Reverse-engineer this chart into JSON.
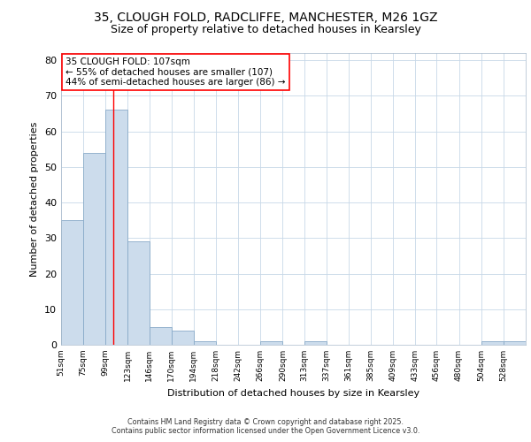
{
  "title1": "35, CLOUGH FOLD, RADCLIFFE, MANCHESTER, M26 1GZ",
  "title2": "Size of property relative to detached houses in Kearsley",
  "xlabel": "Distribution of detached houses by size in Kearsley",
  "ylabel": "Number of detached properties",
  "bin_labels": [
    "51sqm",
    "75sqm",
    "99sqm",
    "123sqm",
    "146sqm",
    "170sqm",
    "194sqm",
    "218sqm",
    "242sqm",
    "266sqm",
    "290sqm",
    "313sqm",
    "337sqm",
    "361sqm",
    "385sqm",
    "409sqm",
    "433sqm",
    "456sqm",
    "480sqm",
    "504sqm",
    "528sqm"
  ],
  "bin_edges": [
    51,
    75,
    99,
    123,
    146,
    170,
    194,
    218,
    242,
    266,
    290,
    313,
    337,
    361,
    385,
    409,
    433,
    456,
    480,
    504,
    528,
    552
  ],
  "values": [
    35,
    54,
    66,
    29,
    5,
    4,
    1,
    0,
    0,
    1,
    0,
    1,
    0,
    0,
    0,
    0,
    0,
    0,
    0,
    1,
    1
  ],
  "bar_color": "#ccdcec",
  "bar_edge_color": "#88aac8",
  "red_line_x": 107,
  "annotation_text": "35 CLOUGH FOLD: 107sqm\n← 55% of detached houses are smaller (107)\n44% of semi-detached houses are larger (86) →",
  "ylim": [
    0,
    82
  ],
  "yticks": [
    0,
    10,
    20,
    30,
    40,
    50,
    60,
    70,
    80
  ],
  "footer": "Contains HM Land Registry data © Crown copyright and database right 2025.\nContains public sector information licensed under the Open Government Licence v3.0.",
  "background_color": "#ffffff",
  "plot_background": "#ffffff",
  "grid_color": "#c8d8e8",
  "title_fontsize": 10,
  "subtitle_fontsize": 9
}
